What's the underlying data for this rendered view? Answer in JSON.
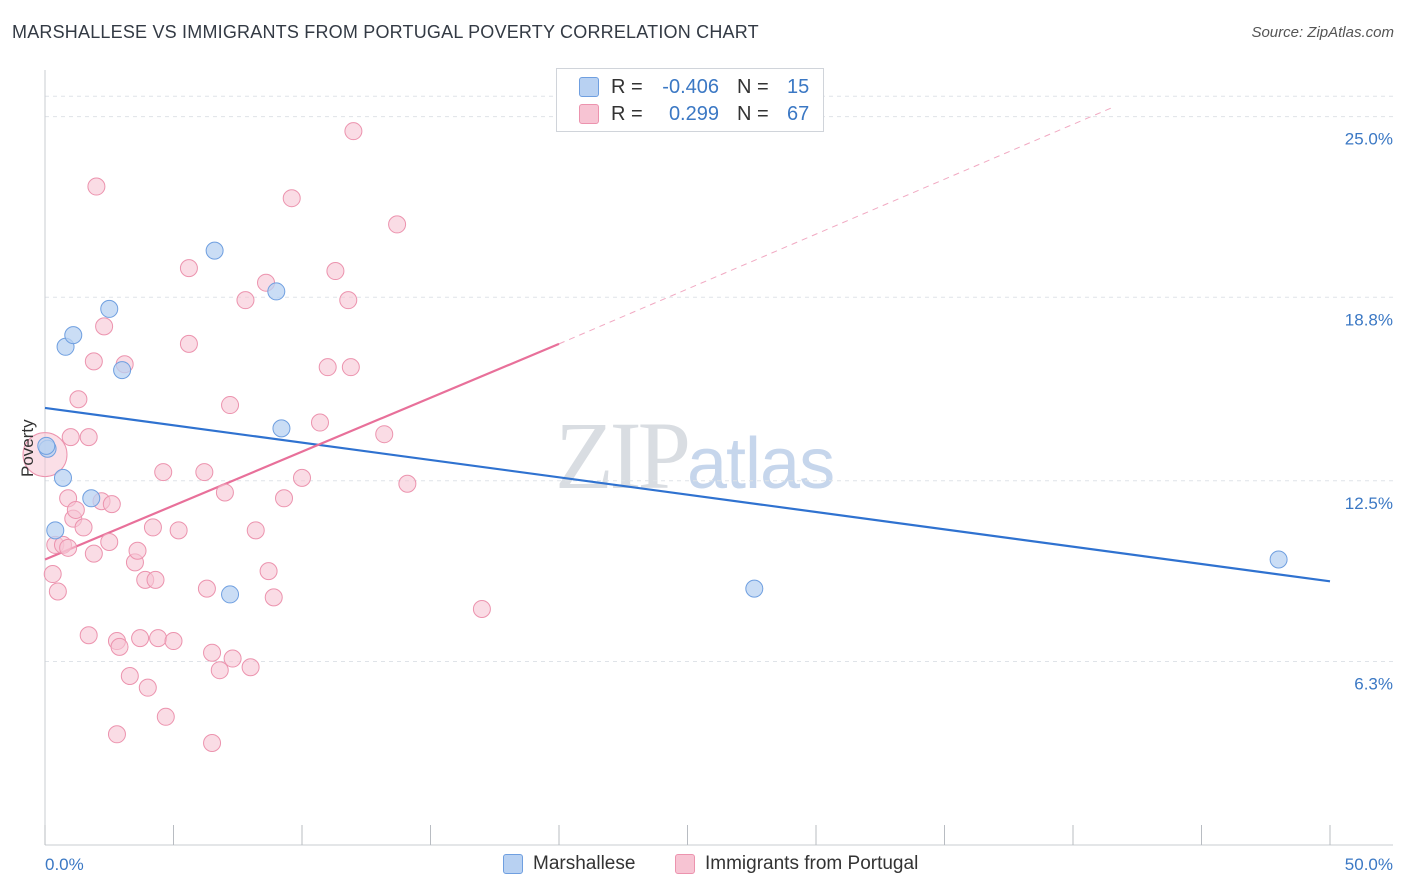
{
  "header": {
    "title": "MARSHALLESE VS IMMIGRANTS FROM PORTUGAL POVERTY CORRELATION CHART",
    "source": "Source: ZipAtlas.com"
  },
  "watermark": {
    "main": "ZIP",
    "sub": "atlas"
  },
  "legend": {
    "rows": [
      {
        "label": "R =",
        "r_value": "-0.406",
        "n_label": "N =",
        "n_value": "15"
      },
      {
        "label": "R =",
        "r_value": "0.299",
        "n_label": "N =",
        "n_value": "67"
      }
    ]
  },
  "bottom_legend": {
    "series1": "Marshallese",
    "series2": "Immigrants from Portugal"
  },
  "colors": {
    "blue_fill": "#b8d1f2",
    "blue_stroke": "#6f9fe0",
    "blue_line": "#2f72d0",
    "pink_fill": "#f7c4d3",
    "pink_stroke": "#ec93ae",
    "pink_line": "#e8709a",
    "tick_label": "#3b78c4",
    "grid": "#dfe3e8"
  },
  "chart_data": {
    "type": "scatter",
    "title": "MARSHALLESE VS IMMIGRANTS FROM PORTUGAL POVERTY CORRELATION CHART",
    "xlabel": "",
    "ylabel": "Poverty",
    "xlim": [
      0,
      50
    ],
    "ylim": [
      0,
      26.6
    ],
    "x_tick_labels": [
      "0.0%",
      "50.0%"
    ],
    "y_ticks": [
      6.3,
      12.5,
      18.8,
      25.0
    ],
    "y_tick_labels": [
      "6.3%",
      "12.5%",
      "18.8%",
      "25.0%"
    ],
    "grid": "horizontal dashed",
    "legend_position": "top-center",
    "series": [
      {
        "name": "Marshallese",
        "color": "#b8d1f2",
        "points": [
          [
            0.1,
            13.6
          ],
          [
            0.4,
            10.8
          ],
          [
            0.7,
            12.6
          ],
          [
            0.8,
            17.1
          ],
          [
            1.1,
            17.5
          ],
          [
            1.8,
            11.9
          ],
          [
            2.5,
            18.4
          ],
          [
            3.0,
            16.3
          ],
          [
            6.6,
            20.4
          ],
          [
            7.2,
            8.6
          ],
          [
            9.0,
            19.0
          ],
          [
            9.2,
            14.3
          ],
          [
            27.6,
            8.8
          ],
          [
            48.0,
            9.8
          ],
          [
            0.05,
            13.7
          ]
        ],
        "trend": {
          "x": [
            0,
            50
          ],
          "y": [
            15.0,
            9.05
          ]
        }
      },
      {
        "name": "Immigrants from Portugal",
        "color": "#f7c4d3",
        "points": [
          [
            0.0,
            13.4
          ],
          [
            0.3,
            9.3
          ],
          [
            0.4,
            10.3
          ],
          [
            0.5,
            8.7
          ],
          [
            0.7,
            10.3
          ],
          [
            0.9,
            10.2
          ],
          [
            0.9,
            11.9
          ],
          [
            1.0,
            14.0
          ],
          [
            1.1,
            11.2
          ],
          [
            1.2,
            11.5
          ],
          [
            1.3,
            15.3
          ],
          [
            1.5,
            10.9
          ],
          [
            1.7,
            14.0
          ],
          [
            1.7,
            7.2
          ],
          [
            1.9,
            10.0
          ],
          [
            1.9,
            16.6
          ],
          [
            2.0,
            22.6
          ],
          [
            2.2,
            11.8
          ],
          [
            2.3,
            17.8
          ],
          [
            2.5,
            10.4
          ],
          [
            2.6,
            11.7
          ],
          [
            2.8,
            7.0
          ],
          [
            2.9,
            6.8
          ],
          [
            2.8,
            3.8
          ],
          [
            3.1,
            16.5
          ],
          [
            3.3,
            5.8
          ],
          [
            3.5,
            9.7
          ],
          [
            3.6,
            10.1
          ],
          [
            3.7,
            7.1
          ],
          [
            3.9,
            9.1
          ],
          [
            4.0,
            5.4
          ],
          [
            4.2,
            10.9
          ],
          [
            4.3,
            9.1
          ],
          [
            4.4,
            7.1
          ],
          [
            4.6,
            12.8
          ],
          [
            4.7,
            4.4
          ],
          [
            5.0,
            7.0
          ],
          [
            5.2,
            10.8
          ],
          [
            5.6,
            17.2
          ],
          [
            5.6,
            19.8
          ],
          [
            6.2,
            12.8
          ],
          [
            6.3,
            8.8
          ],
          [
            6.5,
            6.6
          ],
          [
            6.5,
            3.5
          ],
          [
            6.8,
            6.0
          ],
          [
            7.0,
            12.1
          ],
          [
            7.2,
            15.1
          ],
          [
            7.3,
            6.4
          ],
          [
            7.8,
            18.7
          ],
          [
            8.0,
            6.1
          ],
          [
            8.2,
            10.8
          ],
          [
            8.6,
            19.3
          ],
          [
            8.7,
            9.4
          ],
          [
            8.9,
            8.5
          ],
          [
            9.3,
            11.9
          ],
          [
            9.6,
            22.2
          ],
          [
            10.0,
            12.6
          ],
          [
            10.7,
            14.5
          ],
          [
            11.0,
            16.4
          ],
          [
            11.3,
            19.7
          ],
          [
            11.8,
            18.7
          ],
          [
            11.9,
            16.4
          ],
          [
            12.0,
            24.5
          ],
          [
            13.2,
            14.1
          ],
          [
            13.7,
            21.3
          ],
          [
            14.1,
            12.4
          ],
          [
            17.0,
            8.1
          ]
        ],
        "trend": {
          "x": [
            0,
            20
          ],
          "y": [
            9.8,
            17.2
          ]
        },
        "trend_dashed": {
          "x": [
            20,
            41.5
          ],
          "y": [
            17.2,
            25.3
          ]
        }
      }
    ]
  }
}
